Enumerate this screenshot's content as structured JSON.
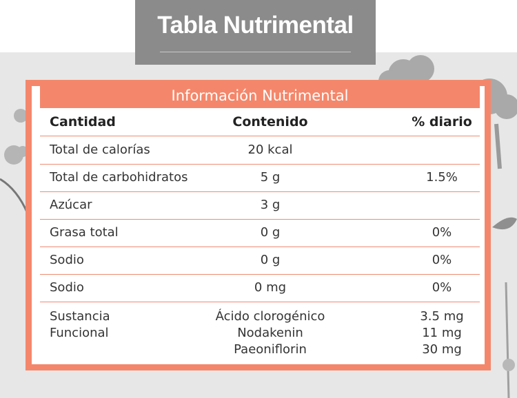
{
  "title": "Tabla Nutrimental",
  "table": {
    "header": "Información Nutrimental",
    "columns": [
      "Cantidad",
      "Contenido",
      "% diario"
    ],
    "rows": [
      {
        "label": "Total de calorías",
        "content": "20 kcal",
        "daily": ""
      },
      {
        "label": "Total de carbohidratos",
        "content": "5 g",
        "daily": "1.5%"
      },
      {
        "label": "Azúcar",
        "content": "3 g",
        "daily": ""
      },
      {
        "label": "Grasa total",
        "content": "0 g",
        "daily": "0%"
      },
      {
        "label": "Sodio",
        "content": "0 g",
        "daily": "0%"
      },
      {
        "label": "Sodio",
        "content": "0 mg",
        "daily": "0%"
      }
    ],
    "functional": {
      "label_lines": [
        "Sustancia",
        "Funcional"
      ],
      "contents": [
        "Ácido clorogénico",
        "Nodakenin",
        "Paeoniflorin"
      ],
      "amounts": [
        "3.5 mg",
        "11 mg",
        "30 mg"
      ]
    }
  },
  "colors": {
    "accent": "#f4876b",
    "title_bg": "#8b8b8b",
    "background": "#e7e7e7"
  },
  "icons": [
    "broccoli-illustration",
    "flower-illustration",
    "plant-leaf-illustration"
  ]
}
